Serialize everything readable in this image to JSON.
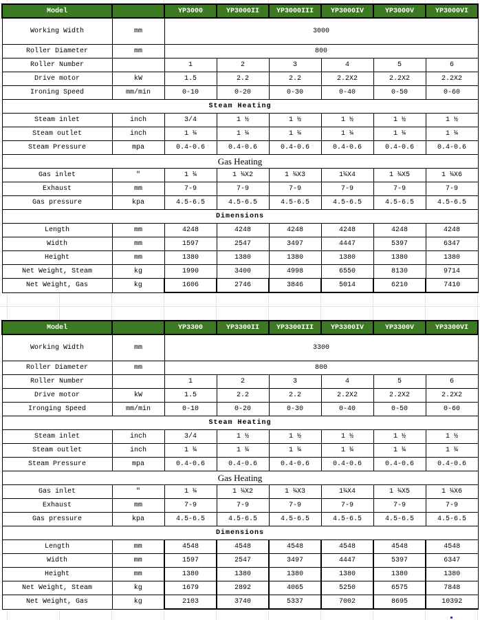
{
  "colors": {
    "header_bg": "#3b7a23",
    "header_text": "#ffffff"
  },
  "tables": [
    {
      "header": {
        "label": "Model",
        "unit": "",
        "models": [
          "YP3000",
          "YP3000II",
          "YP3000III",
          "YP3000IV",
          "YP3000V",
          "YP3000VI"
        ]
      },
      "rows": [
        {
          "type": "spec",
          "label": "Working Width",
          "unit": "mm",
          "span": "3000",
          "tall": true
        },
        {
          "type": "spec",
          "label": "Roller Diameter",
          "unit": "mm",
          "span": "800"
        },
        {
          "type": "spec",
          "label": "Roller Number",
          "unit": "",
          "values": [
            "1",
            "2",
            "3",
            "4",
            "5",
            "6"
          ]
        },
        {
          "type": "spec",
          "label": "Drive motor",
          "unit": "kW",
          "values": [
            "1.5",
            "2.2",
            "2.2",
            "2.2X2",
            "2.2X2",
            "2.2X2"
          ]
        },
        {
          "type": "spec",
          "label": "Ironing Speed",
          "unit": "mm/min",
          "values": [
            "0-10",
            "0-20",
            "0-30",
            "0-40",
            "0-50",
            "0-60"
          ]
        },
        {
          "type": "section",
          "label": "Steam Heating"
        },
        {
          "type": "spec",
          "label": "Steam inlet",
          "unit": "inch",
          "values": [
            "3/4",
            "1 ½",
            "1 ½",
            "1 ½",
            "1 ½",
            "1 ½"
          ]
        },
        {
          "type": "spec",
          "label": "Steam outlet",
          "unit": "inch",
          "values": [
            "1 ¼",
            "1 ¼",
            "1 ¼",
            "1 ¼",
            "1 ¼",
            "1 ¼"
          ]
        },
        {
          "type": "spec",
          "label": "Steam Pressure",
          "unit": "mpa",
          "values": [
            "0.4-0.6",
            "0.4-0.6",
            "0.4-0.6",
            "0.4-0.6",
            "0.4-0.6",
            "0.4-0.6"
          ]
        },
        {
          "type": "section",
          "label": "Gas Heating",
          "serif": true
        },
        {
          "type": "spec",
          "label": "Gas inlet",
          "unit": "\"",
          "values": [
            "1 ¼",
            "1 ¼X2",
            "1 ¼X3",
            "1¼X4",
            "1 ¼X5",
            "1 ¼X6"
          ]
        },
        {
          "type": "spec",
          "label": "Exhaust",
          "unit": "mm",
          "values": [
            "7-9",
            "7-9",
            "7-9",
            "7-9",
            "7-9",
            "7-9"
          ]
        },
        {
          "type": "spec",
          "label": "Gas pressure",
          "unit": "kpa",
          "values": [
            "4.5-6.5",
            "4.5-6.5",
            "4.5-6.5",
            "4.5-6.5",
            "4.5-6.5",
            "4.5-6.5"
          ]
        },
        {
          "type": "section",
          "label": "Dimensions"
        },
        {
          "type": "spec",
          "label": "Length",
          "unit": "mm",
          "values": [
            "4248",
            "4248",
            "4248",
            "4248",
            "4248",
            "4248"
          ]
        },
        {
          "type": "spec",
          "label": "Width",
          "unit": "mm",
          "values": [
            "1597",
            "2547",
            "3497",
            "4447",
            "5397",
            "6347"
          ]
        },
        {
          "type": "spec",
          "label": "Height",
          "unit": "mm",
          "values": [
            "1380",
            "1380",
            "1380",
            "1380",
            "1380",
            "1380"
          ]
        },
        {
          "type": "spec",
          "label": "Net Weight, Steam",
          "unit": "kg",
          "values": [
            "1990",
            "3400",
            "4998",
            "6550",
            "8130",
            "9714"
          ]
        },
        {
          "type": "spec",
          "label": "Net Weight, Gas",
          "unit": "kg",
          "values": [
            "1606",
            "2746",
            "3846",
            "5014",
            "6210",
            "7410"
          ],
          "bold": true
        }
      ]
    },
    {
      "header": {
        "label": "Model",
        "unit": "",
        "models": [
          "YP3300",
          "YP3300II",
          "YP3300III",
          "YP3300IV",
          "YP3300V",
          "YP3300VI"
        ]
      },
      "rows": [
        {
          "type": "spec",
          "label": "Working Width",
          "unit": "mm",
          "span": "3300",
          "tall": true
        },
        {
          "type": "spec",
          "label": "Roller Diameter",
          "unit": "mm",
          "span": "800"
        },
        {
          "type": "spec",
          "label": "Roller Number",
          "unit": "",
          "values": [
            "1",
            "2",
            "3",
            "4",
            "5",
            "6"
          ]
        },
        {
          "type": "spec",
          "label": "Drive motor",
          "unit": "kW",
          "values": [
            "1.5",
            "2.2",
            "2.2",
            "2.2X2",
            "2.2X2",
            "2.2X2"
          ]
        },
        {
          "type": "spec",
          "label": "Ironging Speed",
          "unit": "mm/min",
          "values": [
            "0-10",
            "0-20",
            "0-30",
            "0-40",
            "0-50",
            "0-60"
          ]
        },
        {
          "type": "section",
          "label": "Steam Heating"
        },
        {
          "type": "spec",
          "label": "Steam inlet",
          "unit": "inch",
          "values": [
            "3/4",
            "1 ½",
            "1 ½",
            "1 ½",
            "1 ½",
            "1 ½"
          ]
        },
        {
          "type": "spec",
          "label": "Steam outlet",
          "unit": "inch",
          "values": [
            "1 ¼",
            "1 ¼",
            "1 ¼",
            "1 ¼",
            "1 ¼",
            "1 ¼"
          ]
        },
        {
          "type": "spec",
          "label": "Steam Pressure",
          "unit": "mpa",
          "values": [
            "0.4-0.6",
            "0.4-0.6",
            "0.4-0.6",
            "0.4-0.6",
            "0.4-0.6",
            "0.4-0.6"
          ]
        },
        {
          "type": "section",
          "label": "Gas Heating",
          "serif": true
        },
        {
          "type": "spec",
          "label": "Gas inlet",
          "unit": "\"",
          "values": [
            "1 ¼",
            "1 ¼X2",
            "1 ¼X3",
            "1¼X4",
            "1 ¼X5",
            "1 ¼X6"
          ]
        },
        {
          "type": "spec",
          "label": "Exhaust",
          "unit": "mm",
          "values": [
            "7-9",
            "7-9",
            "7-9",
            "7-9",
            "7-9",
            "7-9"
          ]
        },
        {
          "type": "spec",
          "label": "Gas pressure",
          "unit": "kpa",
          "values": [
            "4.5-6.5",
            "4.5-6.5",
            "4.5-6.5",
            "4.5-6.5",
            "4.5-6.5",
            "4.5-6.5"
          ]
        },
        {
          "type": "section",
          "label": "Dimensions"
        },
        {
          "type": "spec",
          "label": "Length",
          "unit": "mm",
          "values": [
            "4548",
            "4548",
            "4548",
            "4548",
            "4548",
            "4548"
          ],
          "bold": true
        },
        {
          "type": "spec",
          "label": "Width",
          "unit": "mm",
          "values": [
            "1597",
            "2547",
            "3497",
            "4447",
            "5397",
            "6347"
          ],
          "bold": true
        },
        {
          "type": "spec",
          "label": "Height",
          "unit": "mm",
          "values": [
            "1380",
            "1380",
            "1380",
            "1380",
            "1380",
            "1380"
          ],
          "bold": true
        },
        {
          "type": "spec",
          "label": "Net Weight, Steam",
          "unit": "kg",
          "values": [
            "1679",
            "2892",
            "4065",
            "5250",
            "6575",
            "7848"
          ],
          "bold": true
        },
        {
          "type": "spec",
          "label": "Net Weight, Gas",
          "unit": "kg",
          "values": [
            "2103",
            "3740",
            "5337",
            "7002",
            "8695",
            "10392"
          ],
          "bold": true
        }
      ]
    }
  ]
}
